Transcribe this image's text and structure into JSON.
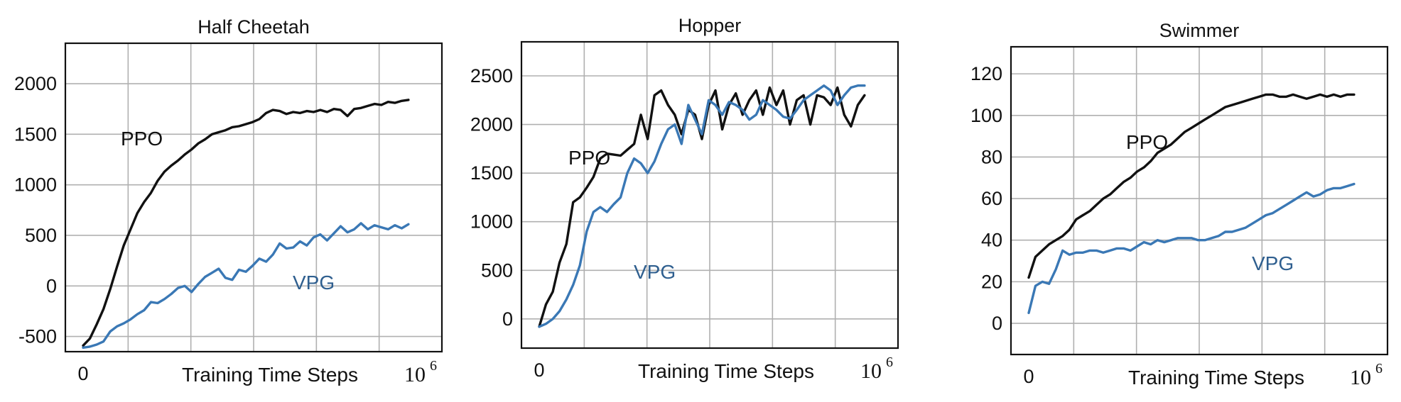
{
  "chart_data": [
    {
      "type": "line",
      "title": "Half Cheetah",
      "xlabel": "Training Time Steps",
      "x_tick_start": "0",
      "x_tick_end_base": "10",
      "x_tick_end_exp": "6",
      "xlim": [
        0,
        1000000
      ],
      "ylim": [
        -650,
        2400
      ],
      "yticks": [
        -500,
        0,
        500,
        1000,
        1500,
        2000
      ],
      "ytick_labels": [
        "-500",
        "0",
        "500",
        "1000",
        "1500",
        "2000"
      ],
      "grid": true,
      "series": [
        {
          "name": "PPO",
          "color": "#111111",
          "x": [
            0,
            20000,
            40000,
            60000,
            80000,
            100000,
            120000,
            140000,
            160000,
            180000,
            200000,
            220000,
            240000,
            260000,
            280000,
            300000,
            320000,
            340000,
            360000,
            380000,
            400000,
            420000,
            440000,
            460000,
            480000,
            500000,
            520000,
            540000,
            560000,
            580000,
            600000,
            620000,
            640000,
            660000,
            680000,
            700000,
            720000,
            740000,
            760000,
            780000,
            800000,
            820000,
            840000,
            860000,
            880000,
            900000,
            920000,
            940000,
            960000
          ],
          "values": [
            -590,
            -520,
            -380,
            -230,
            -30,
            190,
            400,
            560,
            720,
            830,
            920,
            1040,
            1130,
            1190,
            1240,
            1300,
            1350,
            1410,
            1450,
            1500,
            1520,
            1540,
            1570,
            1580,
            1600,
            1620,
            1650,
            1710,
            1740,
            1730,
            1700,
            1720,
            1710,
            1730,
            1720,
            1740,
            1720,
            1750,
            1740,
            1680,
            1750,
            1760,
            1780,
            1800,
            1790,
            1820,
            1810,
            1830,
            1840
          ]
        },
        {
          "name": "VPG",
          "color": "#3a78b5",
          "x": [
            0,
            20000,
            40000,
            60000,
            80000,
            100000,
            120000,
            140000,
            160000,
            180000,
            200000,
            220000,
            240000,
            260000,
            280000,
            300000,
            320000,
            340000,
            360000,
            380000,
            400000,
            420000,
            440000,
            460000,
            480000,
            500000,
            520000,
            540000,
            560000,
            580000,
            600000,
            620000,
            640000,
            660000,
            680000,
            700000,
            720000,
            740000,
            760000,
            780000,
            800000,
            820000,
            840000,
            860000,
            880000,
            900000,
            920000,
            940000,
            960000
          ],
          "values": [
            -610,
            -600,
            -580,
            -550,
            -450,
            -400,
            -370,
            -330,
            -280,
            -240,
            -160,
            -170,
            -130,
            -80,
            -20,
            0,
            -60,
            20,
            90,
            130,
            170,
            80,
            60,
            160,
            140,
            200,
            270,
            240,
            310,
            420,
            370,
            380,
            440,
            400,
            480,
            510,
            450,
            520,
            590,
            530,
            560,
            620,
            560,
            600,
            580,
            560,
            600,
            570,
            610
          ]
        }
      ],
      "annotations": [
        "PPO",
        "VPG"
      ]
    },
    {
      "type": "line",
      "title": "Hopper",
      "xlabel": "Training Time Steps",
      "x_tick_start": "0",
      "x_tick_end_base": "10",
      "x_tick_end_exp": "6",
      "xlim": [
        0,
        1000000
      ],
      "ylim": [
        -300,
        2850
      ],
      "yticks": [
        0,
        500,
        1000,
        1500,
        2000,
        2500
      ],
      "ytick_labels": [
        "0",
        "500",
        "1000",
        "1500",
        "2000",
        "2500"
      ],
      "grid": true,
      "series": [
        {
          "name": "PPO",
          "color": "#111111",
          "x": [
            0,
            20000,
            40000,
            60000,
            80000,
            100000,
            120000,
            140000,
            160000,
            180000,
            200000,
            220000,
            240000,
            260000,
            280000,
            300000,
            320000,
            340000,
            360000,
            380000,
            400000,
            420000,
            440000,
            460000,
            480000,
            500000,
            520000,
            540000,
            560000,
            580000,
            600000,
            620000,
            640000,
            660000,
            680000,
            700000,
            720000,
            740000,
            760000,
            780000,
            800000,
            820000,
            840000,
            860000,
            880000,
            900000,
            920000,
            940000,
            960000
          ],
          "values": [
            -80,
            150,
            280,
            580,
            770,
            1200,
            1250,
            1350,
            1460,
            1650,
            1700,
            1690,
            1680,
            1740,
            1800,
            2100,
            1850,
            2300,
            2350,
            2200,
            2100,
            1900,
            2150,
            2100,
            1850,
            2200,
            2350,
            1950,
            2200,
            2320,
            2100,
            2250,
            2350,
            2100,
            2380,
            2200,
            2350,
            2000,
            2250,
            2300,
            2000,
            2300,
            2280,
            2200,
            2380,
            2100,
            1980,
            2200,
            2300
          ]
        },
        {
          "name": "VPG",
          "color": "#3a78b5",
          "x": [
            0,
            20000,
            40000,
            60000,
            80000,
            100000,
            120000,
            140000,
            160000,
            180000,
            200000,
            220000,
            240000,
            260000,
            280000,
            300000,
            320000,
            340000,
            360000,
            380000,
            400000,
            420000,
            440000,
            460000,
            480000,
            500000,
            520000,
            540000,
            560000,
            580000,
            600000,
            620000,
            640000,
            660000,
            680000,
            700000,
            720000,
            740000,
            760000,
            780000,
            800000,
            820000,
            840000,
            860000,
            880000,
            900000,
            920000,
            940000,
            960000
          ],
          "values": [
            -80,
            -50,
            0,
            80,
            200,
            350,
            550,
            900,
            1100,
            1150,
            1100,
            1180,
            1250,
            1500,
            1650,
            1600,
            1500,
            1620,
            1800,
            1950,
            2000,
            1800,
            2200,
            2050,
            1900,
            2250,
            2200,
            2100,
            2230,
            2200,
            2150,
            2050,
            2100,
            2250,
            2200,
            2150,
            2080,
            2060,
            2150,
            2250,
            2300,
            2350,
            2400,
            2350,
            2200,
            2300,
            2380,
            2400,
            2400
          ]
        }
      ],
      "annotations": [
        "PPO",
        "VPG"
      ]
    },
    {
      "type": "line",
      "title": "Swimmer",
      "xlabel": "Training Time Steps",
      "x_tick_start": "0",
      "x_tick_end_base": "10",
      "x_tick_end_exp": "6",
      "xlim": [
        0,
        1000000
      ],
      "ylim": [
        -15,
        133
      ],
      "yticks": [
        0,
        20,
        40,
        60,
        80,
        100,
        120
      ],
      "ytick_labels": [
        "0",
        "20",
        "40",
        "60",
        "80",
        "100",
        "120"
      ],
      "grid": true,
      "series": [
        {
          "name": "PPO",
          "color": "#111111",
          "x": [
            0,
            20000,
            40000,
            60000,
            80000,
            100000,
            120000,
            140000,
            160000,
            180000,
            200000,
            220000,
            240000,
            260000,
            280000,
            300000,
            320000,
            340000,
            360000,
            380000,
            400000,
            420000,
            440000,
            460000,
            480000,
            500000,
            520000,
            540000,
            560000,
            580000,
            600000,
            620000,
            640000,
            660000,
            680000,
            700000,
            720000,
            740000,
            760000,
            780000,
            800000,
            820000,
            840000,
            860000,
            880000,
            900000,
            920000,
            940000,
            960000
          ],
          "values": [
            22,
            32,
            35,
            38,
            40,
            42,
            45,
            50,
            52,
            54,
            57,
            60,
            62,
            65,
            68,
            70,
            73,
            75,
            78,
            82,
            84,
            86,
            89,
            92,
            94,
            96,
            98,
            100,
            102,
            104,
            105,
            106,
            107,
            108,
            109,
            110,
            110,
            109,
            109,
            110,
            109,
            108,
            109,
            110,
            109,
            110,
            109,
            110,
            110
          ]
        },
        {
          "name": "VPG",
          "color": "#3a78b5",
          "x": [
            0,
            20000,
            40000,
            60000,
            80000,
            100000,
            120000,
            140000,
            160000,
            180000,
            200000,
            220000,
            240000,
            260000,
            280000,
            300000,
            320000,
            340000,
            360000,
            380000,
            400000,
            420000,
            440000,
            460000,
            480000,
            500000,
            520000,
            540000,
            560000,
            580000,
            600000,
            620000,
            640000,
            660000,
            680000,
            700000,
            720000,
            740000,
            760000,
            780000,
            800000,
            820000,
            840000,
            860000,
            880000,
            900000,
            920000,
            940000,
            960000
          ],
          "values": [
            5,
            18,
            20,
            19,
            26,
            35,
            33,
            34,
            34,
            35,
            35,
            34,
            35,
            36,
            36,
            35,
            37,
            39,
            38,
            40,
            39,
            40,
            41,
            41,
            41,
            40,
            40,
            41,
            42,
            44,
            44,
            45,
            46,
            48,
            50,
            52,
            53,
            55,
            57,
            59,
            61,
            63,
            61,
            62,
            64,
            65,
            65,
            66,
            67
          ]
        }
      ],
      "annotations": [
        "PPO",
        "VPG"
      ]
    }
  ]
}
